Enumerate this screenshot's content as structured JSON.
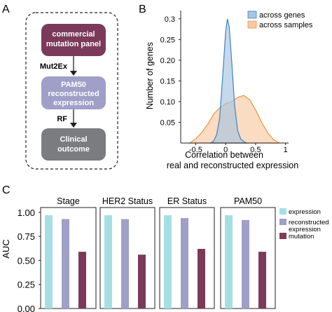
{
  "panel_letters": {
    "a": "A",
    "b": "B",
    "c": "C"
  },
  "flowchart": {
    "boxes": [
      {
        "label_lines": [
          "commercial",
          "mutation panel"
        ],
        "color": "#7b3a5a"
      },
      {
        "label_lines": [
          "PAM50",
          "reconstructed",
          "expression"
        ],
        "color": "#9f9fc8"
      },
      {
        "label_lines": [
          "Clinical",
          "outcome"
        ],
        "color": "#7b7c7f"
      }
    ],
    "arrow_labels": [
      "Mut2Ex",
      "RF"
    ]
  },
  "chart_data": [
    {
      "type": "area",
      "panel": "B",
      "xlabel": "Correlation between\nreal and reconstructed expression",
      "ylabel": "Number of genes",
      "xlim": [
        -0.75,
        1.05
      ],
      "ylim": [
        0,
        0.32
      ],
      "xticks": [
        -0.5,
        0,
        0.5,
        1
      ],
      "xtick_labels": [
        "-0.5",
        "0",
        "0.5",
        "1"
      ],
      "yticks": [
        0.05,
        0.1,
        0.15,
        0.2,
        0.25,
        0.3
      ],
      "ytick_labels": [
        "0.05",
        "0.10",
        "0.15",
        "0.20",
        "0.25",
        "0.3"
      ],
      "legend_position": "top-right",
      "series": [
        {
          "name": "across genes",
          "color": "#3a84c4",
          "fill": "#a8c4e0",
          "x": [
            -0.25,
            -0.2,
            -0.15,
            -0.1,
            -0.05,
            0.0,
            0.03,
            0.06,
            0.1,
            0.15,
            0.2,
            0.25,
            0.3,
            0.35
          ],
          "y": [
            0.0,
            0.005,
            0.02,
            0.06,
            0.16,
            0.27,
            0.3,
            0.28,
            0.2,
            0.09,
            0.03,
            0.01,
            0.004,
            0.0
          ]
        },
        {
          "name": "across samples",
          "color": "#f0933a",
          "fill": "#f7c9a3",
          "x": [
            -0.6,
            -0.5,
            -0.4,
            -0.3,
            -0.2,
            -0.1,
            0.0,
            0.1,
            0.2,
            0.3,
            0.4,
            0.5,
            0.6,
            0.7,
            0.8,
            0.9
          ],
          "y": [
            0.0,
            0.01,
            0.025,
            0.045,
            0.07,
            0.085,
            0.095,
            0.1,
            0.11,
            0.115,
            0.105,
            0.08,
            0.05,
            0.025,
            0.008,
            0.0
          ]
        }
      ]
    },
    {
      "type": "bar",
      "panel": "C",
      "ylabel": "AUC",
      "ylim": [
        0,
        1.05
      ],
      "yticks": [
        0,
        0.25,
        0.5,
        0.75,
        1.0
      ],
      "ytick_labels": [
        "0.00",
        "0.25",
        "0.50",
        "0.75",
        "1.00"
      ],
      "legend_position": "right",
      "series": [
        {
          "name": "expression",
          "color": "#a6dfe3"
        },
        {
          "name": "reconstructed\nexpression",
          "color": "#9f9fc8"
        },
        {
          "name": "mutation",
          "color": "#7b3a5a"
        }
      ],
      "facets": [
        {
          "title": "Stage",
          "values": [
            0.97,
            0.93,
            0.59
          ]
        },
        {
          "title": "HER2 Status",
          "values": [
            0.97,
            0.93,
            0.56
          ]
        },
        {
          "title": "ER Status",
          "values": [
            0.97,
            0.94,
            0.62
          ]
        },
        {
          "title": "PAM50",
          "values": [
            0.97,
            0.92,
            0.59
          ]
        }
      ]
    }
  ]
}
